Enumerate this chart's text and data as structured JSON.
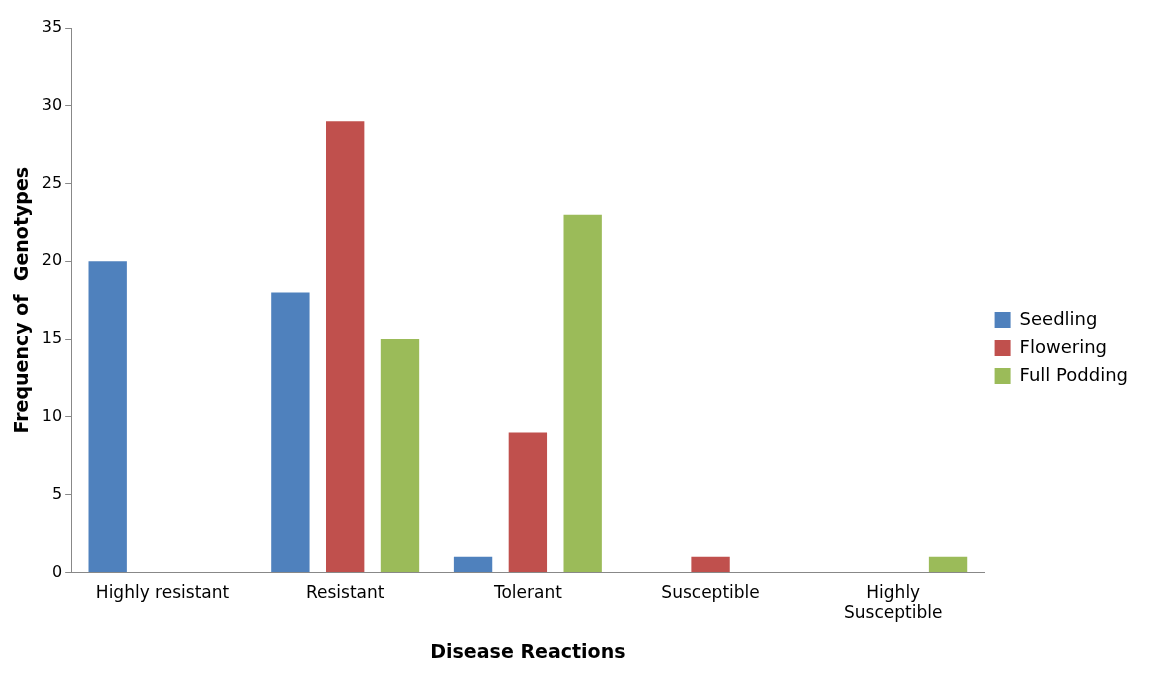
{
  "chart_data": {
    "type": "bar",
    "xlabel": "Disease Reactions",
    "ylabel": "Frequency of  Genotypes",
    "categories": [
      "Highly resistant",
      "Resistant",
      "Tolerant",
      "Susceptible",
      "Highly Susceptible"
    ],
    "series": [
      {
        "name": "Seedling",
        "color": "#4f81bd",
        "values": [
          20,
          18,
          1,
          0,
          0
        ]
      },
      {
        "name": "Flowering",
        "color": "#c0504d",
        "values": [
          0,
          29,
          9,
          1,
          0
        ]
      },
      {
        "name": "Full Podding",
        "color": "#9bbb59",
        "values": [
          0,
          15,
          23,
          0,
          1
        ]
      }
    ],
    "ylim": [
      0,
      35
    ],
    "yticks": [
      0,
      5,
      10,
      15,
      20,
      25,
      30,
      35
    ],
    "grid": false,
    "legend": "right"
  }
}
